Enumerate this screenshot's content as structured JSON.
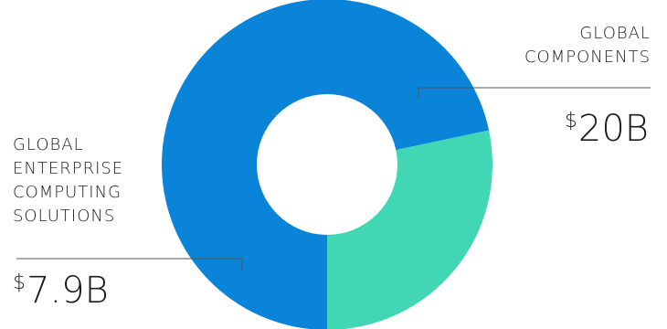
{
  "chart_data": {
    "type": "pie",
    "variant": "donut",
    "slices": [
      {
        "label_lines": [
          "GLOBAL",
          "COMPONENTS"
        ],
        "currency": "$",
        "amount": "20B",
        "value": 20,
        "color": "#0a84d8"
      },
      {
        "label_lines": [
          "GLOBAL",
          "ENTERPRISE",
          "COMPUTING",
          "SOLUTIONS"
        ],
        "currency": "$",
        "amount": "7.9B",
        "value": 7.9,
        "color": "#41d6b4"
      }
    ]
  }
}
